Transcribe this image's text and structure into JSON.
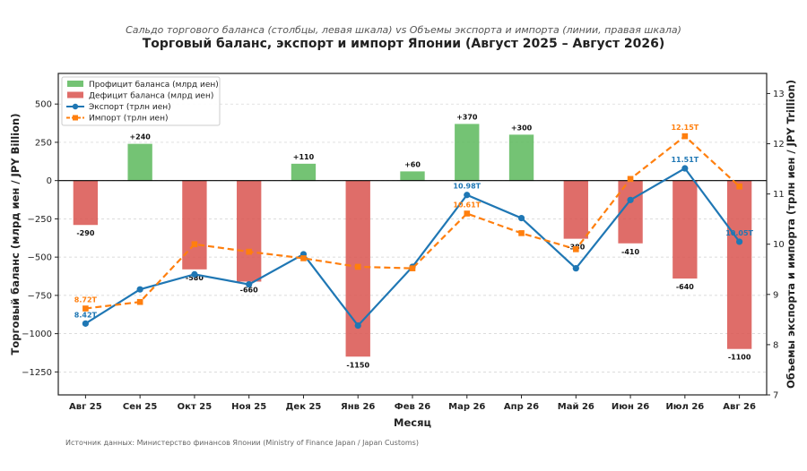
{
  "subtitle": "Сальдо торгового баланса (столбцы, левая шкала) vs Объемы экспорта и импорта (линии, правая шкала)",
  "title": "Торговый баланс, экспорт и импорт Японии (Август 2025 – Август 2026)",
  "source": "Источник данных: Министерство финансов Японии (Ministry of Finance Japan / Japan Customs)",
  "chart_data": {
    "type": "bar",
    "categories": [
      "Авг 25",
      "Сен 25",
      "Окт 25",
      "Ноя 25",
      "Дек 25",
      "Янв 26",
      "Фев 26",
      "Мар 26",
      "Апр 26",
      "Май 26",
      "Июн 26",
      "Июл 26",
      "Авг 26"
    ],
    "xlabel": "Месяц",
    "ylabel": "Торговый баланс (млрд иен / JPY Billion)",
    "y2label": "Объемы экспорта и импорта (трлн иен / JPY Trillion)",
    "ylim": [
      -1400,
      700
    ],
    "y2lim": [
      7,
      13.4
    ],
    "yticks": [
      "500",
      "250",
      "0",
      "−250",
      "−500",
      "−750",
      "−1000",
      "−1250"
    ],
    "yticks_values": [
      500,
      250,
      0,
      -250,
      -500,
      -750,
      -1000,
      -1250
    ],
    "y2ticks": [
      "7",
      "8",
      "9",
      "10",
      "11",
      "12",
      "13"
    ],
    "y2ticks_values": [
      7,
      8,
      9,
      10,
      11,
      12,
      13
    ],
    "grid": true,
    "legend_position": "top-left",
    "balance": {
      "values": [
        -290,
        240,
        -580,
        -660,
        110,
        -1150,
        60,
        370,
        300,
        -380,
        -410,
        -640,
        -1100
      ],
      "labels": [
        "-290",
        "+240",
        "-580",
        "-660",
        "+110",
        "-1150",
        "+60",
        "+370",
        "+300",
        "-380",
        "-410",
        "-640",
        "-1100"
      ],
      "surplus_name": "Профицит баланса (млрд иен)",
      "deficit_name": "Дефицит баланса (млрд иен)",
      "surplus_color": "#5cb85c",
      "deficit_color": "#d9534f"
    },
    "series": [
      {
        "name": "Экспорт (трлн иен)",
        "color": "#1f77b4",
        "values": [
          8.42,
          9.1,
          9.4,
          9.2,
          9.8,
          8.38,
          9.55,
          10.98,
          10.52,
          9.52,
          10.88,
          11.51,
          10.05
        ],
        "point_labels": {
          "0": "8.42T",
          "7": "10.98T",
          "11": "11.51T",
          "12": "10.05T"
        }
      },
      {
        "name": "Импорт (трлн иен)",
        "color": "#ff7f0e",
        "values": [
          8.72,
          8.85,
          10.0,
          9.85,
          9.72,
          9.55,
          9.52,
          10.61,
          10.22,
          9.9,
          11.3,
          12.15,
          11.15
        ],
        "point_labels": {
          "0": "8.72T",
          "7": "10.61T",
          "11": "12.15T"
        }
      }
    ]
  }
}
